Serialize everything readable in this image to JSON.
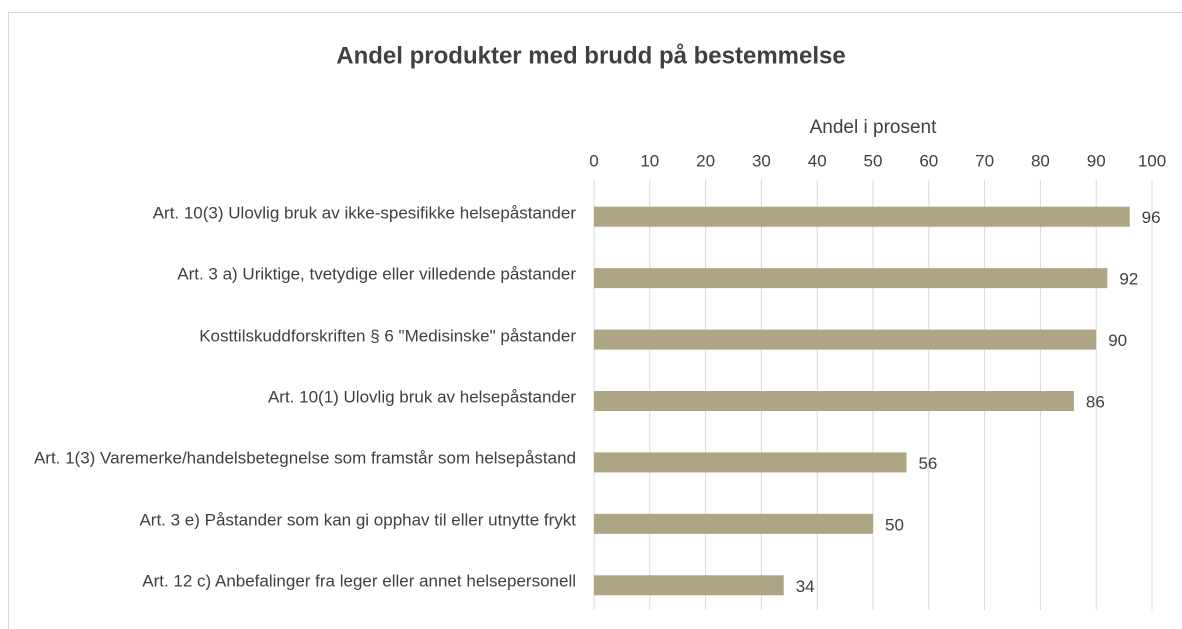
{
  "chart_data": {
    "type": "bar",
    "orientation": "horizontal",
    "title": "Andel produkter med brudd på bestemmelse",
    "x_label": "Andel i prosent",
    "categories": [
      "Art. 10(3) Ulovlig bruk av ikke-spesifikke helsepåstander",
      "Art. 3 a) Uriktige, tvetydige eller villedende påstander",
      "Kosttilskuddforskriften § 6 \"Medisinske\" påstander",
      "Art. 10(1) Ulovlig bruk av helsepåstander",
      "Art. 1(3) Varemerke/handelsbetegnelse som framstår som helsepåstand",
      "Art. 3 e) Påstander som kan gi opphav til eller utnytte frykt",
      "Art. 12 c) Anbefalinger fra leger eller annet helsepersonell"
    ],
    "values": [
      96,
      92,
      90,
      86,
      56,
      50,
      34
    ],
    "color": "#ada584",
    "xlim": [
      0,
      100
    ],
    "xticks": [
      0,
      10,
      20,
      30,
      40,
      50,
      60,
      70,
      80,
      90,
      100
    ],
    "grid": true
  }
}
